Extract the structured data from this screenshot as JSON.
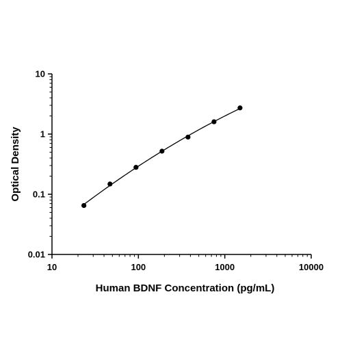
{
  "chart_data": {
    "type": "scatter",
    "title": "",
    "xlabel": "Human BDNF Concentration (pg/mL)",
    "ylabel": "Optical Density",
    "xscale": "log",
    "yscale": "log",
    "xlim": [
      10,
      10000
    ],
    "ylim": [
      0.01,
      10
    ],
    "x_tick_labels": [
      "10",
      "100",
      "1000",
      "10000"
    ],
    "y_tick_labels": [
      "0.01",
      "0.1",
      "1",
      "10"
    ],
    "grid": false,
    "legend": "none",
    "point_color": "#000000",
    "series": [
      {
        "x": [
          23.4,
          46.9,
          93.8,
          187.5,
          375,
          750,
          1500
        ],
        "y": [
          0.065,
          0.148,
          0.28,
          0.52,
          0.89,
          1.6,
          2.72
        ],
        "markers": true,
        "fit_curve": true
      }
    ]
  }
}
